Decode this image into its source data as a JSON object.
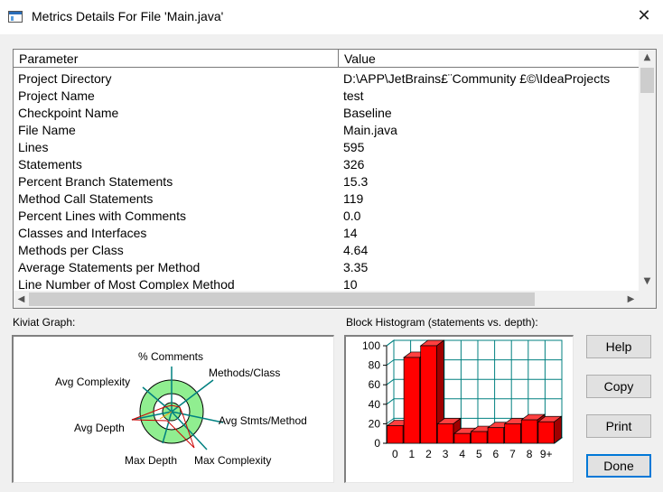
{
  "window": {
    "title": "Metrics Details For File 'Main.java'",
    "close": "✕"
  },
  "table": {
    "headers": {
      "parameter": "Parameter",
      "value": "Value"
    },
    "rows": [
      {
        "p": "Project Directory",
        "v": "D:\\APP\\JetBrains£¨Community £©\\IdeaProjects"
      },
      {
        "p": "Project Name",
        "v": "test"
      },
      {
        "p": "Checkpoint Name",
        "v": "Baseline"
      },
      {
        "p": "File Name",
        "v": "Main.java"
      },
      {
        "p": "Lines",
        "v": "595"
      },
      {
        "p": "Statements",
        "v": "326"
      },
      {
        "p": "Percent Branch Statements",
        "v": "15.3"
      },
      {
        "p": "Method Call Statements",
        "v": "119"
      },
      {
        "p": "Percent Lines with Comments",
        "v": "0.0"
      },
      {
        "p": "Classes and Interfaces",
        "v": "14"
      },
      {
        "p": "Methods per Class",
        "v": "4.64"
      },
      {
        "p": "Average Statements per Method",
        "v": "3.35"
      },
      {
        "p": "Line Number of Most Complex Method",
        "v": "10"
      }
    ]
  },
  "kiviat": {
    "label": "Kiviat Graph:",
    "axes": [
      "% Comments",
      "Methods/Class",
      "Avg Stmts/Method",
      "Max Complexity",
      "Max Depth",
      "Avg Depth",
      "Avg Complexity"
    ],
    "colors": {
      "outer_band": "#90ee90",
      "inner": "#ffffff",
      "spokes": "#008080",
      "polygon": "#cc0000"
    }
  },
  "histogram": {
    "label": "Block Histogram (statements vs. depth):",
    "bar_color": "#ff0000",
    "grid_color": "#008080"
  },
  "chart_data": {
    "type": "bar",
    "categories": [
      "0",
      "1",
      "2",
      "3",
      "4",
      "5",
      "6",
      "7",
      "8",
      "9+"
    ],
    "values": [
      18,
      88,
      100,
      20,
      10,
      12,
      16,
      20,
      24,
      22
    ],
    "title": "",
    "xlabel": "",
    "ylabel": "",
    "ylim": [
      0,
      100
    ],
    "yticks": [
      "0",
      "20",
      "40",
      "60",
      "80",
      "100"
    ]
  },
  "buttons": {
    "help": "Help",
    "copy": "Copy",
    "print": "Print",
    "done": "Done"
  },
  "icons": {
    "up": "▲",
    "down": "▼",
    "left": "◀",
    "right": "▶"
  }
}
